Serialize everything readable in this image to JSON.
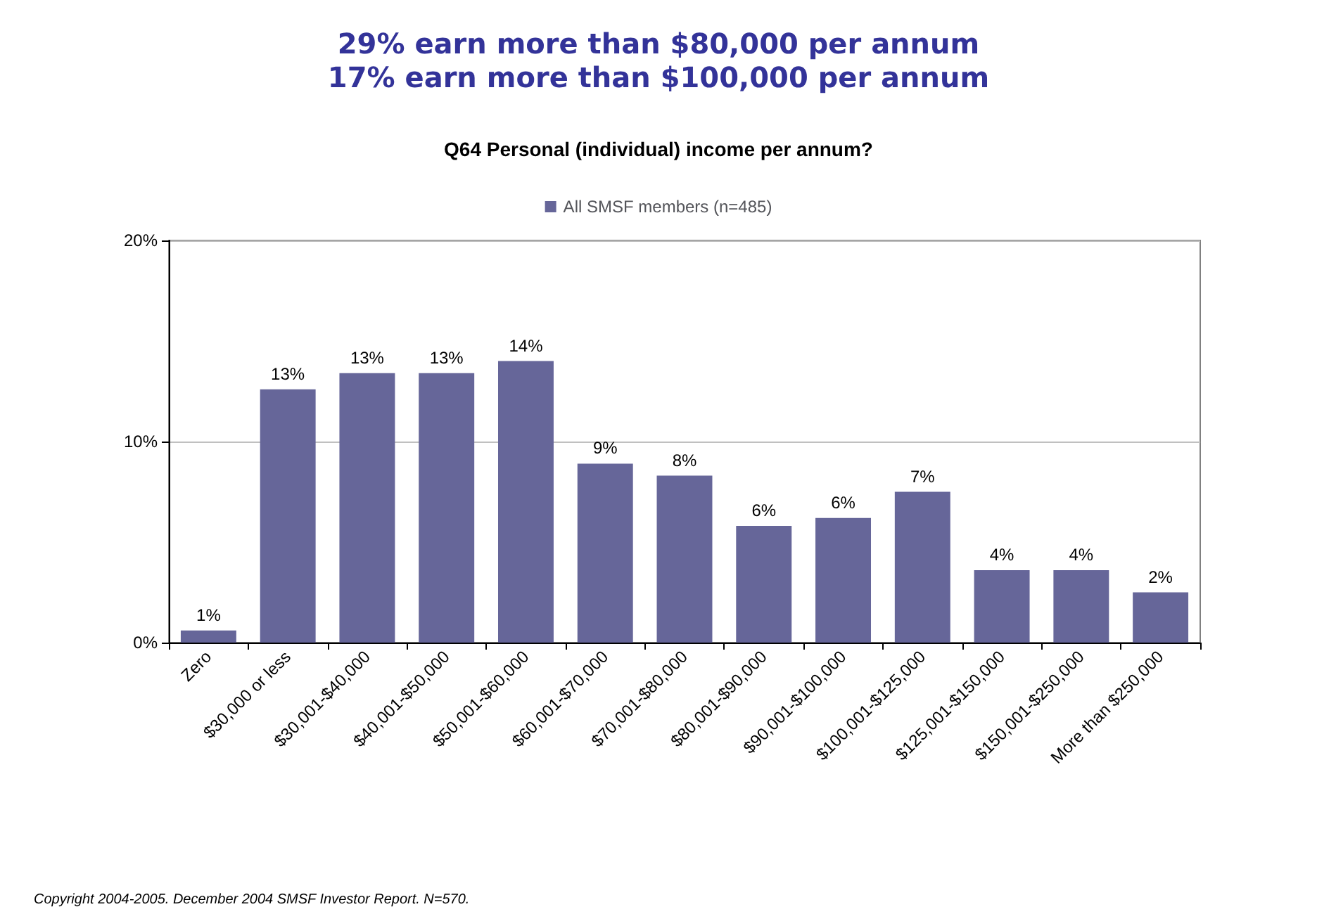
{
  "chart_data": {
    "type": "bar",
    "title": "29% earn more than $80,000 per annum\n17% earn more than $100,000 per annum",
    "subtitle": "Q64 Personal (individual) income per annum?",
    "categories": [
      "Zero",
      "$30,000 or less",
      "$30,001-$40,000",
      "$40,001-$50,000",
      "$50,001-$60,000",
      "$60,001-$70,000",
      "$70,001-$80,000",
      "$80,001-$90,000",
      "$90,001-$100,000",
      "$100,001-$125,000",
      "$125,001-$150,000",
      "$150,001-$250,000",
      "More than $250,000"
    ],
    "series": [
      {
        "name": "All SMSF members (n=485)",
        "color": "#666699",
        "values": [
          0.6,
          12.6,
          13.4,
          13.4,
          14.0,
          8.9,
          8.3,
          5.8,
          6.2,
          7.5,
          3.6,
          3.6,
          2.5
        ],
        "value_labels": [
          "1%",
          "13%",
          "13%",
          "13%",
          "14%",
          "9%",
          "8%",
          "6%",
          "6%",
          "7%",
          "4%",
          "4%",
          "2%"
        ]
      }
    ],
    "ylim": [
      0,
      20
    ],
    "yticks": [
      {
        "value": 0,
        "label": "0%"
      },
      {
        "value": 10,
        "label": "10%"
      },
      {
        "value": 20,
        "label": "20%"
      }
    ],
    "grid": "y",
    "legend": "top",
    "annotations": [
      "Copyright 2004-2005. December 2004 SMSF Investor Report. N=570."
    ]
  }
}
